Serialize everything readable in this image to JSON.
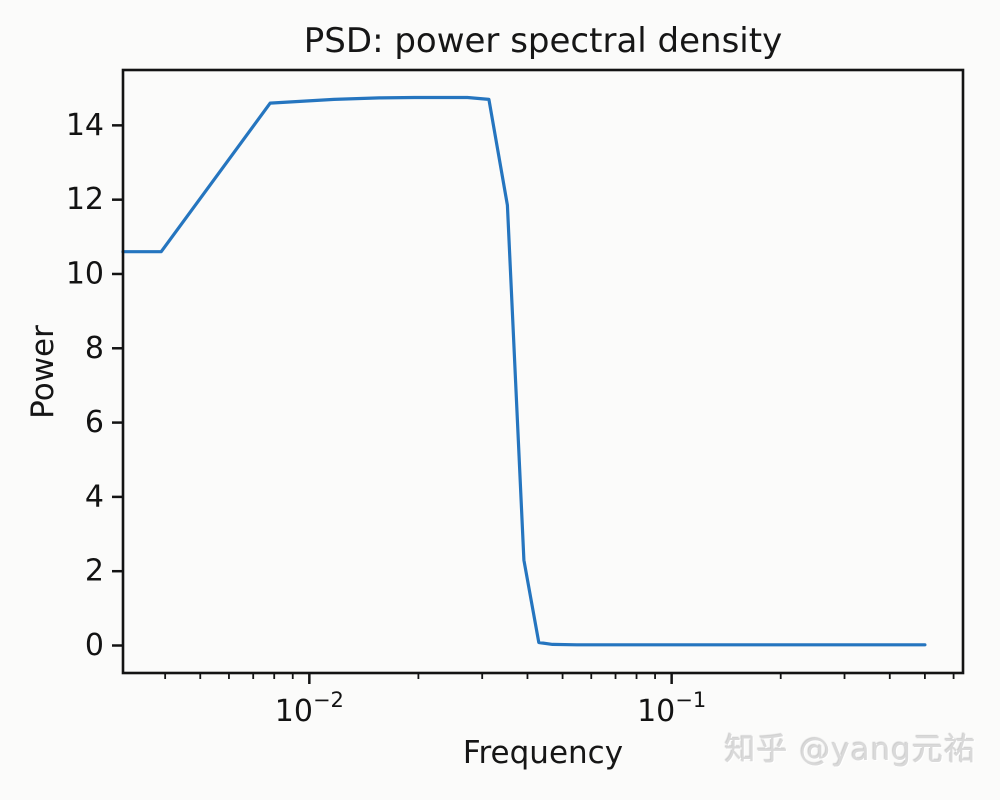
{
  "watermark": {
    "text": "知乎 @yang元祐"
  },
  "chart_data": {
    "type": "line",
    "title": "PSD: power spectral density",
    "xlabel": "Frequency",
    "ylabel": "Power",
    "xscale": "log",
    "yscale": "linear",
    "xlim": [
      0.00306,
      0.637
    ],
    "ylim": [
      -0.74,
      15.49
    ],
    "grid": false,
    "legend_position": "none",
    "line_color": "#2575bf",
    "frame_color": "#131313",
    "text_color": "#131313",
    "y_ticks": [
      0,
      2,
      4,
      6,
      8,
      10,
      12,
      14
    ],
    "x_major_ticks": [
      {
        "value": 0.01,
        "mantissa": "10",
        "exponent": "−2"
      },
      {
        "value": 0.1,
        "mantissa": "10",
        "exponent": "−1"
      }
    ],
    "x_minor_ticks": [
      0.004,
      0.005,
      0.006,
      0.007,
      0.008,
      0.009,
      0.02,
      0.03,
      0.04,
      0.05,
      0.06,
      0.07,
      0.08,
      0.09,
      0.2,
      0.3,
      0.4,
      0.5,
      0.6
    ],
    "series": [
      {
        "name": "PSD",
        "points": [
          [
            0,
            10.6
          ],
          [
            0.0039,
            10.6
          ],
          [
            0.0078,
            14.6
          ],
          [
            0.0117,
            14.7
          ],
          [
            0.0156,
            14.74
          ],
          [
            0.0195,
            14.75
          ],
          [
            0.0234,
            14.75
          ],
          [
            0.0273,
            14.75
          ],
          [
            0.0313,
            14.7
          ],
          [
            0.0352,
            11.85
          ],
          [
            0.0391,
            2.3
          ],
          [
            0.043,
            0.08
          ],
          [
            0.0469,
            0.03
          ],
          [
            0.0547,
            0.02
          ],
          [
            0.0664,
            0.02
          ],
          [
            0.0859,
            0.02
          ],
          [
            0.1094,
            0.02
          ],
          [
            0.1406,
            0.02
          ],
          [
            0.1797,
            0.02
          ],
          [
            0.2305,
            0.02
          ],
          [
            0.2969,
            0.02
          ],
          [
            0.3828,
            0.02
          ],
          [
            0.5,
            0.02
          ]
        ]
      }
    ]
  }
}
